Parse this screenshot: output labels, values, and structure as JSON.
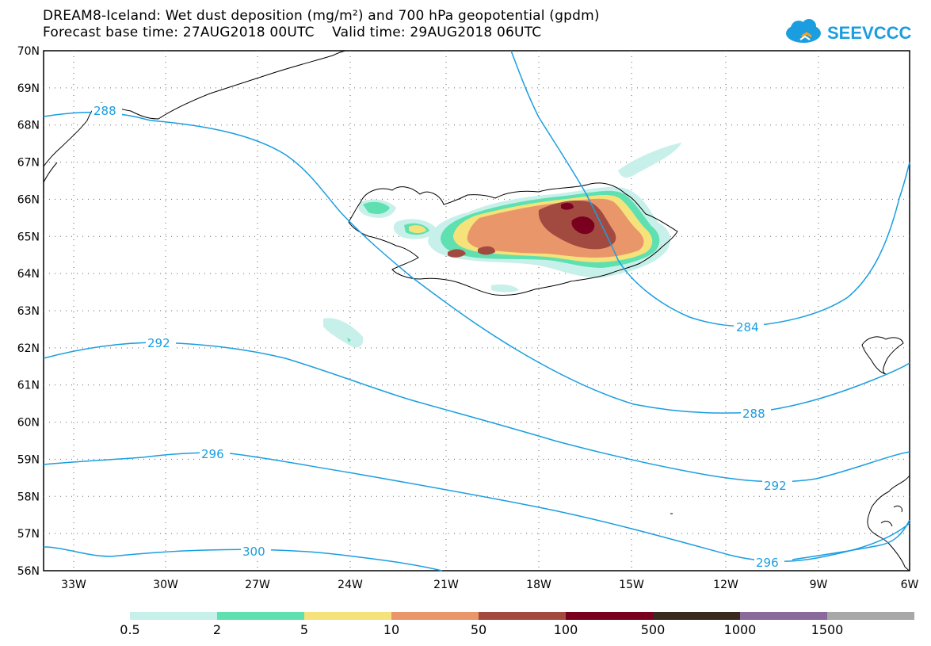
{
  "title": {
    "line1": "DREAM8-Iceland: Wet dust deposition (mg/m²) and 700 hPa geopotential (gpdm)",
    "line2": "Forecast base time: 27AUG2018 00UTC    Valid time: 29AUG2018 06UTC"
  },
  "logo": {
    "text": "SEEVCCC",
    "icon": "cloud-logo-icon",
    "color": "#1a9ee0"
  },
  "map": {
    "lat_labels": [
      "70N",
      "69N",
      "68N",
      "67N",
      "66N",
      "65N",
      "64N",
      "63N",
      "62N",
      "61N",
      "60N",
      "59N",
      "58N",
      "57N",
      "56N"
    ],
    "lon_labels": [
      "33W",
      "30W",
      "27W",
      "24W",
      "21W",
      "18W",
      "15W",
      "12W",
      "9W",
      "6W"
    ],
    "contour_labels": [
      "288",
      "284",
      "292",
      "288",
      "292",
      "296",
      "296",
      "300"
    ],
    "contour_color": "#1a9ee0"
  },
  "legend": {
    "colors": [
      "#c8f0ea",
      "#5fe0b0",
      "#f5e27a",
      "#e9966b",
      "#a34a40",
      "#7a0020",
      "#3a2a1e",
      "#8a6a9a",
      "#a8a8a8"
    ],
    "labels": [
      "0.5",
      "2",
      "5",
      "10",
      "50",
      "100",
      "500",
      "1000",
      "1500"
    ]
  }
}
